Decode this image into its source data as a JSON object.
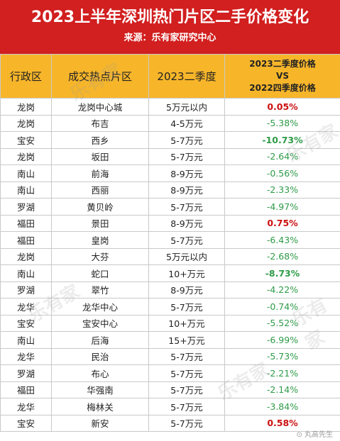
{
  "title": "2023上半年深圳热门片区二手价格变化",
  "source": "来源：乐有家研究中心",
  "headers": {
    "district": "行政区",
    "area": "成交热点片区",
    "q2": "2023二季度",
    "compare_line1": "2023二季度价格",
    "compare_line2": "VS",
    "compare_line3": "2022四季度价格"
  },
  "rows": [
    {
      "district": "龙岗",
      "area": "龙岗中心城",
      "price": "5万元以内",
      "change": "0.05%"
    },
    {
      "district": "龙岗",
      "area": "布吉",
      "price": "4-5万元",
      "change": "-5.38%"
    },
    {
      "district": "宝安",
      "area": "西乡",
      "price": "5-7万元",
      "change": "-10.73%"
    },
    {
      "district": "龙岗",
      "area": "坂田",
      "price": "5-7万元",
      "change": "-2.64%"
    },
    {
      "district": "南山",
      "area": "前海",
      "price": "8-9万元",
      "change": "-0.56%"
    },
    {
      "district": "南山",
      "area": "西丽",
      "price": "8-9万元",
      "change": "-2.33%"
    },
    {
      "district": "罗湖",
      "area": "黄贝岭",
      "price": "5-7万元",
      "change": "-4.97%"
    },
    {
      "district": "福田",
      "area": "景田",
      "price": "8-9万元",
      "change": "0.75%"
    },
    {
      "district": "福田",
      "area": "皇岗",
      "price": "5-7万元",
      "change": "-6.43%"
    },
    {
      "district": "龙岗",
      "area": "大芬",
      "price": "5万元以内",
      "change": "-2.68%"
    },
    {
      "district": "南山",
      "area": "蛇口",
      "price": "10+万元",
      "change": "-8.73%"
    },
    {
      "district": "罗湖",
      "area": "翠竹",
      "price": "8-9万元",
      "change": "-4.22%"
    },
    {
      "district": "龙华",
      "area": "龙华中心",
      "price": "5-7万元",
      "change": "-0.74%"
    },
    {
      "district": "宝安",
      "area": "宝安中心",
      "price": "10+万元",
      "change": "-5.52%"
    },
    {
      "district": "南山",
      "area": "后海",
      "price": "15+万元",
      "change": "-6.99%"
    },
    {
      "district": "龙华",
      "area": "民治",
      "price": "5-7万元",
      "change": "-5.73%"
    },
    {
      "district": "罗湖",
      "area": "布心",
      "price": "5-7万元",
      "change": "-2.21%"
    },
    {
      "district": "福田",
      "area": "华强南",
      "price": "5-7万元",
      "change": "-2.14%"
    },
    {
      "district": "龙华",
      "area": "梅林关",
      "price": "5-7万元",
      "change": "-3.84%"
    },
    {
      "district": "宝安",
      "area": "新安",
      "price": "5-7万元",
      "change": "0.58%"
    }
  ],
  "watermark": "乐有家",
  "credit": "⊙ 丸高先生",
  "colors": {
    "title_bg": "#d21f1f",
    "header_bg": "#f7b62a",
    "up": "#cc1111",
    "down": "#2e9b48"
  }
}
